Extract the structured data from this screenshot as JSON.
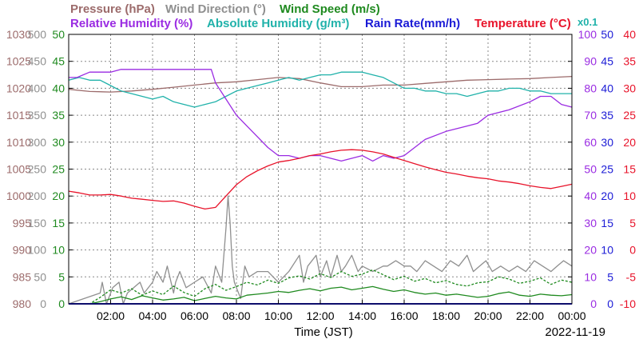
{
  "chart_data": {
    "type": "line",
    "date": "2022-11-19",
    "xlabel": "Time (JST)",
    "x_ticks": [
      "02:00",
      "04:00",
      "06:00",
      "08:00",
      "10:00",
      "12:00",
      "14:00",
      "16:00",
      "18:00",
      "20:00",
      "22:00",
      "00:00"
    ],
    "x_range_hours": [
      0,
      24
    ],
    "grid": true,
    "legend": [
      {
        "text": "Pressure (hPa)",
        "color": "#9c6b6b"
      },
      {
        "text": "Wind Direction (°)",
        "color": "#8f8f8f"
      },
      {
        "text": "Wind Speed (m/s)",
        "color": "#1f8a1f"
      },
      {
        "text": "Relative Humidity (%)",
        "color": "#9a2be2"
      },
      {
        "text": "Absolute Humidity (g/m³)",
        "color": "#20b2aa"
      },
      {
        "text": "Rain Rate(mm/h)",
        "color": "#1a1ad6"
      },
      {
        "text": "Temperature (°C)",
        "color": "#e8132a"
      },
      {
        "text": "x0.1",
        "color": "#20b2aa"
      }
    ],
    "axes": {
      "pressure": {
        "range": [
          980,
          1030
        ],
        "ticks": [
          "1030",
          "1025",
          "1020",
          "1015",
          "1010",
          "1005",
          "1000",
          "995",
          "990",
          "985",
          "980"
        ],
        "color": "#9c6b6b"
      },
      "wind_direction": {
        "range": [
          0,
          500
        ],
        "ticks": [
          "500",
          "450",
          "400",
          "350",
          "300",
          "250",
          "200",
          "150",
          "100",
          "50",
          "0"
        ],
        "color": "#8f8f8f"
      },
      "wind_speed": {
        "range": [
          0,
          50
        ],
        "ticks": [
          "50",
          "45",
          "40",
          "35",
          "30",
          "25",
          "20",
          "15",
          "10",
          "5",
          "0"
        ],
        "color": "#1f8a1f"
      },
      "humidity": {
        "range": [
          0,
          100
        ],
        "ticks": [
          "100",
          "90",
          "80",
          "70",
          "60",
          "50",
          "40",
          "30",
          "20",
          "10",
          "0"
        ],
        "color": "#9a2be2"
      },
      "rain_rate": {
        "range": [
          0,
          50
        ],
        "ticks": [
          "50",
          "45",
          "40",
          "35",
          "30",
          "25",
          "20",
          "15",
          "10",
          "5",
          "0"
        ],
        "color": "#1a1ad6"
      },
      "temperature": {
        "range": [
          -10,
          40
        ],
        "ticks": [
          "40",
          "35",
          "30",
          "25",
          "20",
          "15",
          "10",
          "5",
          "0",
          "-5",
          "-10"
        ],
        "color": "#e8132a"
      }
    },
    "series": [
      {
        "name": "Pressure (hPa)",
        "axis": "pressure",
        "color": "#9c6b6b",
        "x": [
          0,
          1,
          2,
          3,
          4,
          5,
          6,
          7,
          8,
          9,
          10,
          11,
          12,
          13,
          14,
          15,
          16,
          17,
          18,
          19,
          20,
          21,
          22,
          23,
          24
        ],
        "y": [
          1019.8,
          1019.4,
          1019.3,
          1019.5,
          1019.8,
          1020.2,
          1020.6,
          1021.0,
          1021.2,
          1021.6,
          1022.0,
          1021.8,
          1021.0,
          1020.3,
          1020.3,
          1020.6,
          1020.6,
          1020.9,
          1021.2,
          1021.5,
          1021.6,
          1021.7,
          1021.8,
          1022.0,
          1022.2
        ]
      },
      {
        "name": "Absolute Humidity (g/m³) x0.1",
        "axis": "humidity",
        "color": "#20b2aa",
        "x": [
          0,
          0.5,
          1,
          1.5,
          2,
          2.5,
          3,
          3.5,
          4,
          4.5,
          5,
          5.5,
          6,
          6.5,
          7,
          7.5,
          8,
          8.5,
          9,
          9.5,
          10,
          10.5,
          11,
          11.5,
          12,
          12.5,
          13,
          13.5,
          14,
          14.5,
          15,
          15.5,
          16,
          16.5,
          17,
          17.5,
          18,
          18.5,
          19,
          19.5,
          20,
          20.5,
          21,
          21.5,
          22,
          22.5,
          23,
          23.5,
          24
        ],
        "y": [
          83,
          84,
          83,
          83,
          81,
          79,
          78,
          77,
          76,
          77,
          75,
          74,
          73,
          74,
          75,
          77,
          79,
          80,
          81,
          82,
          83,
          84,
          83,
          84,
          85,
          85,
          86,
          86,
          86,
          85,
          84,
          82,
          80,
          80,
          79,
          79,
          78,
          78,
          77,
          78,
          79,
          79,
          80,
          80,
          79,
          79,
          78,
          78,
          78
        ]
      },
      {
        "name": "Relative Humidity (%)",
        "axis": "humidity",
        "color": "#9a2be2",
        "x": [
          0,
          0.4,
          1,
          2,
          2.5,
          3,
          3.5,
          4,
          4.5,
          5,
          6,
          6.8,
          7,
          7.5,
          8,
          8.5,
          9,
          9.5,
          10,
          10.5,
          11,
          11.5,
          12,
          12.5,
          13,
          13.5,
          14,
          14.5,
          15,
          15.5,
          16,
          16.5,
          17,
          18,
          19,
          19.5,
          20,
          21,
          22,
          22.5,
          23,
          23.5,
          24
        ],
        "y": [
          84,
          84,
          86,
          86,
          87,
          87,
          87,
          87,
          87,
          87,
          87,
          87,
          82,
          76,
          70,
          66,
          62,
          58,
          55,
          55,
          54,
          55,
          55,
          54,
          53,
          54,
          55,
          53,
          55,
          54,
          55,
          58,
          61,
          64,
          66,
          67,
          70,
          72,
          75,
          77,
          77,
          74,
          73
        ]
      },
      {
        "name": "Temperature (°C)",
        "axis": "temperature",
        "color": "#e8132a",
        "x": [
          0,
          0.5,
          1,
          1.5,
          2,
          2.5,
          3,
          3.5,
          4,
          4.5,
          5,
          5.5,
          6,
          6.5,
          7,
          7.5,
          8,
          8.5,
          9,
          9.5,
          10,
          10.5,
          11,
          11.5,
          12,
          12.5,
          13,
          13.5,
          14,
          14.5,
          15,
          15.5,
          16,
          16.5,
          17,
          17.5,
          18,
          18.5,
          19,
          19.5,
          20,
          20.5,
          21,
          21.5,
          22,
          22.5,
          23,
          23.5,
          24
        ],
        "y": [
          10.9,
          10.6,
          10.2,
          10.2,
          10.3,
          10.0,
          9.6,
          9.4,
          9.2,
          9.0,
          9.1,
          8.7,
          8.1,
          7.6,
          7.9,
          10.0,
          12.1,
          13.6,
          14.7,
          15.6,
          16.3,
          16.6,
          17.0,
          17.5,
          17.8,
          18.2,
          18.5,
          18.6,
          18.5,
          18.2,
          17.8,
          17.2,
          16.6,
          16.0,
          15.4,
          14.9,
          14.4,
          14.1,
          13.7,
          13.4,
          13.2,
          12.8,
          12.6,
          12.3,
          11.9,
          11.6,
          11.4,
          11.8,
          12.2
        ]
      },
      {
        "name": "Wind Direction (°)",
        "axis": "wind_direction",
        "color": "#8f8f8f",
        "x": [
          0,
          1.5,
          1.6,
          1.8,
          2.1,
          2.4,
          2.6,
          2.8,
          3.4,
          3.6,
          4.0,
          4.2,
          4.5,
          4.7,
          5.0,
          5.1,
          5.3,
          5.6,
          6.0,
          6.4,
          6.8,
          7.0,
          7.3,
          7.5,
          7.6,
          7.7,
          7.8,
          7.9,
          8.0,
          8.2,
          8.4,
          8.6,
          9.0,
          9.5,
          10,
          10.5,
          11,
          11.2,
          11.4,
          11.8,
          12,
          12.3,
          12.5,
          12.8,
          13,
          13.2,
          13.5,
          13.8,
          14,
          14.5,
          15,
          15.2,
          15.6,
          16,
          16.3,
          16.6,
          17,
          17.4,
          17.8,
          18.2,
          18.6,
          19,
          19.3,
          19.6,
          19.9,
          20.2,
          20.6,
          21,
          21.4,
          21.8,
          22.2,
          22.6,
          23,
          23.3,
          23.6,
          24
        ],
        "y": [
          0,
          20,
          40,
          0,
          30,
          40,
          0,
          20,
          40,
          20,
          40,
          60,
          40,
          70,
          20,
          40,
          60,
          30,
          40,
          50,
          20,
          70,
          40,
          140,
          200,
          150,
          70,
          40,
          30,
          10,
          70,
          50,
          60,
          60,
          40,
          60,
          90,
          40,
          70,
          90,
          50,
          80,
          50,
          90,
          60,
          70,
          90,
          60,
          70,
          60,
          70,
          70,
          80,
          70,
          70,
          60,
          80,
          70,
          60,
          80,
          70,
          90,
          60,
          70,
          80,
          60,
          70,
          60,
          70,
          60,
          80,
          70,
          60,
          70,
          80,
          70
        ]
      },
      {
        "name": "Wind Speed (m/s) avg",
        "axis": "wind_speed",
        "color": "#1f8a1f",
        "x": [
          0,
          1,
          1.5,
          2,
          2.5,
          3,
          3.5,
          4,
          4.5,
          5,
          5.5,
          6,
          6.5,
          7,
          7.5,
          8,
          8.5,
          9,
          9.5,
          10,
          10.5,
          11,
          11.5,
          12,
          12.5,
          13,
          13.5,
          14,
          14.5,
          15,
          15.5,
          16,
          16.5,
          17,
          17.5,
          18,
          18.5,
          19,
          19.5,
          20,
          20.5,
          21,
          21.5,
          22,
          22.5,
          23,
          23.5,
          24
        ],
        "y": [
          0,
          0,
          0.4,
          0.9,
          1.3,
          0.8,
          1.5,
          1.1,
          0.7,
          0.9,
          1.2,
          0.6,
          1.0,
          1.4,
          1.1,
          0.9,
          1.6,
          1.8,
          2.0,
          2.3,
          2.1,
          2.5,
          2.8,
          2.4,
          2.9,
          3.1,
          2.6,
          2.9,
          3.2,
          2.7,
          2.3,
          2.6,
          2.1,
          1.8,
          2.0,
          1.6,
          1.8,
          1.5,
          1.2,
          1.4,
          1.9,
          2.2,
          1.6,
          1.4,
          1.8,
          1.6,
          1.5,
          1.7
        ]
      },
      {
        "name": "Wind Speed (m/s) gust",
        "axis": "wind_speed",
        "color": "#1f8a1f",
        "x": [
          0,
          1,
          1.5,
          2,
          2.5,
          3,
          3.5,
          4,
          4.5,
          5,
          5.5,
          6,
          6.5,
          7,
          7.5,
          8,
          8.5,
          9,
          9.5,
          10,
          10.5,
          11,
          11.5,
          12,
          12.5,
          13,
          13.5,
          14,
          14.5,
          15,
          15.5,
          16,
          16.5,
          17,
          17.5,
          18,
          18.5,
          19,
          19.5,
          20,
          20.5,
          21,
          21.5,
          22,
          22.5,
          23,
          23.5,
          24
        ],
        "y": [
          0,
          0,
          1.2,
          2.6,
          2.0,
          2.8,
          1.6,
          2.4,
          1.7,
          3.3,
          2.1,
          1.4,
          2.8,
          3.6,
          2.5,
          3.2,
          4.0,
          3.5,
          4.4,
          3.8,
          4.8,
          5.2,
          4.6,
          5.6,
          4.9,
          6.0,
          5.1,
          5.5,
          6.3,
          5.4,
          4.5,
          5.1,
          4.2,
          4.7,
          3.9,
          4.3,
          3.6,
          3.3,
          3.9,
          4.1,
          5.0,
          4.6,
          3.8,
          4.2,
          4.8,
          3.6,
          4.4,
          4.0
        ]
      },
      {
        "name": "Rain Rate(mm/h)",
        "axis": "rain_rate",
        "color": "#1a1ad6",
        "x": [
          0,
          24
        ],
        "y": [
          0,
          0
        ]
      }
    ]
  }
}
